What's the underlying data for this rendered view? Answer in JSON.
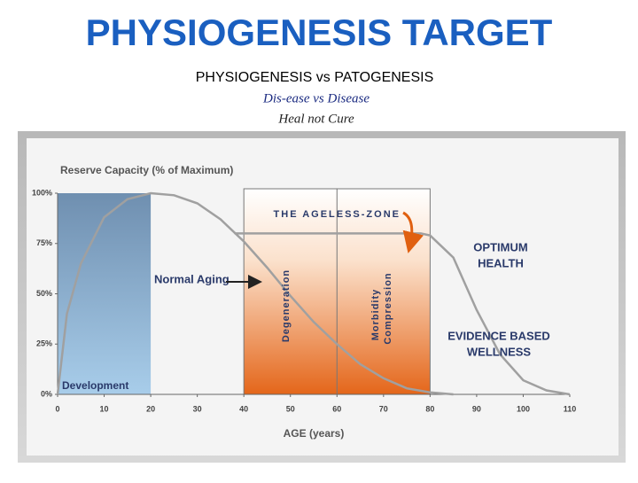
{
  "title": "PHYSIOGENESIS TARGET",
  "subtitle": "PHYSIOGENESIS vs PATOGENESIS",
  "tagline1": "Dis-ease vs Disease",
  "tagline2": "Heal not Cure",
  "chart_data": {
    "type": "line",
    "y_label": "Reserve Capacity (% of Maximum)",
    "x_label": "AGE (years)",
    "xlim": [
      0,
      110
    ],
    "xticks": [
      0,
      10,
      20,
      30,
      40,
      50,
      60,
      70,
      80,
      90,
      100,
      110
    ],
    "ylim": [
      0,
      100
    ],
    "yticks": [
      {
        "value": 0,
        "label": "0%"
      },
      {
        "value": 25,
        "label": "25%"
      },
      {
        "value": 50,
        "label": "50%"
      },
      {
        "value": 75,
        "label": "75%"
      },
      {
        "value": 100,
        "label": "100%"
      }
    ],
    "regions": [
      {
        "label": "Development",
        "from": 0,
        "to": 20,
        "color": "#8fb5d8"
      },
      {
        "label": "THE AGELESS-ZONE",
        "from": 40,
        "to": 80,
        "color": "#e8782a"
      }
    ],
    "dividers": [
      60
    ],
    "series": [
      {
        "name": "Normal Aging",
        "color": "#a0a0a0",
        "x": [
          0,
          2,
          5,
          10,
          15,
          20,
          25,
          30,
          35,
          40,
          45,
          50,
          55,
          60,
          65,
          70,
          75,
          80,
          85
        ],
        "values": [
          0,
          40,
          65,
          88,
          97,
          100,
          99,
          95,
          87,
          76,
          63,
          49,
          36,
          25,
          15,
          8,
          3,
          1,
          0
        ]
      },
      {
        "color": "#a0a0a0",
        "x": [
          38,
          50,
          60,
          70,
          78,
          80,
          85,
          90,
          95,
          100,
          105,
          110
        ],
        "values": [
          80,
          80,
          80,
          80,
          80,
          79,
          68,
          42,
          20,
          7,
          2,
          0
        ]
      }
    ],
    "annotations": [
      "Degeneration",
      "Morbidity",
      "Compression",
      "OPTIMUM",
      "HEALTH",
      "EVIDENCE BASED",
      "WELLNESS"
    ]
  }
}
